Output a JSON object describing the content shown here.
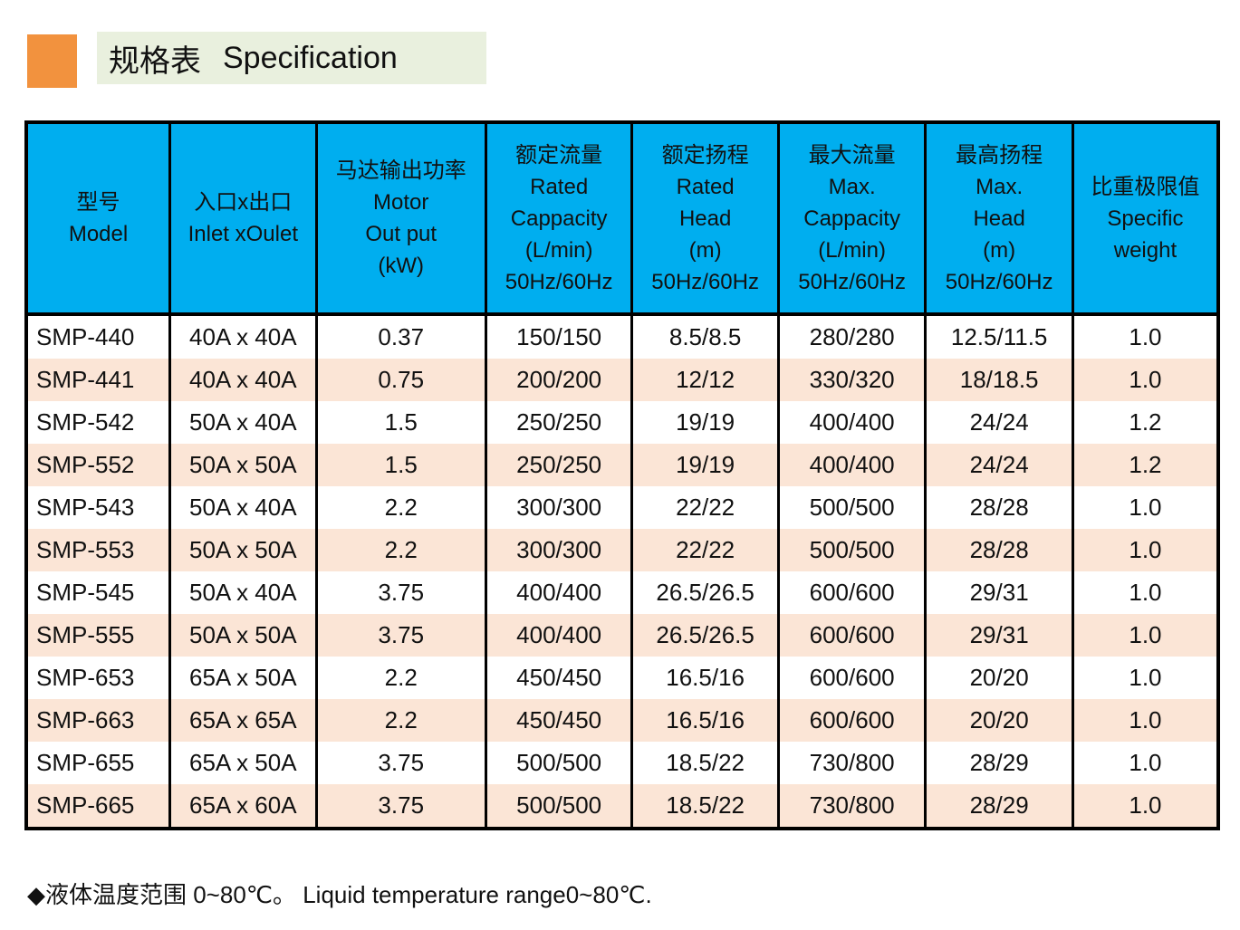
{
  "title": {
    "zh": "规格表",
    "en": "Specification"
  },
  "colors": {
    "header_blue": "#00AEEF",
    "row_alt_peach": "#FBE5D6",
    "accent_orange": "#F2923E",
    "title_bg_green": "#E9F0DE",
    "border_black": "#000000"
  },
  "table": {
    "columns": [
      {
        "id": "model",
        "lines": [
          "型号",
          "Model"
        ]
      },
      {
        "id": "inlet-outlet",
        "lines": [
          "入口x出口",
          "Inlet xOulet"
        ]
      },
      {
        "id": "motor-output",
        "lines": [
          "马达输出功率",
          "Motor",
          "Out put",
          "(kW)"
        ]
      },
      {
        "id": "rated-capacity",
        "lines": [
          "额定流量",
          "Rated",
          "Cappacity",
          "(L/min)",
          "50Hz/60Hz"
        ]
      },
      {
        "id": "rated-head",
        "lines": [
          "额定扬程",
          "Rated",
          "Head",
          "(m)",
          "50Hz/60Hz"
        ]
      },
      {
        "id": "max-capacity",
        "lines": [
          "最大流量",
          "Max.",
          "Cappacity",
          "(L/min)",
          "50Hz/60Hz"
        ]
      },
      {
        "id": "max-head",
        "lines": [
          "最高扬程",
          "Max.",
          "Head",
          "(m)",
          "50Hz/60Hz"
        ]
      },
      {
        "id": "specific-weight",
        "lines": [
          "比重极限值",
          "Specific",
          "weight"
        ]
      }
    ],
    "rows": [
      [
        "SMP-440",
        "40A x 40A",
        "0.37",
        "150/150",
        "8.5/8.5",
        "280/280",
        "12.5/11.5",
        "1.0"
      ],
      [
        "SMP-441",
        "40A x 40A",
        "0.75",
        "200/200",
        "12/12",
        "330/320",
        "18/18.5",
        "1.0"
      ],
      [
        "SMP-542",
        "50A x 40A",
        "1.5",
        "250/250",
        "19/19",
        "400/400",
        "24/24",
        "1.2"
      ],
      [
        "SMP-552",
        "50A x 50A",
        "1.5",
        "250/250",
        "19/19",
        "400/400",
        "24/24",
        "1.2"
      ],
      [
        "SMP-543",
        "50A x 40A",
        "2.2",
        "300/300",
        "22/22",
        "500/500",
        "28/28",
        "1.0"
      ],
      [
        "SMP-553",
        "50A x 50A",
        "2.2",
        "300/300",
        "22/22",
        "500/500",
        "28/28",
        "1.0"
      ],
      [
        "SMP-545",
        "50A x 40A",
        "3.75",
        "400/400",
        "26.5/26.5",
        "600/600",
        "29/31",
        "1.0"
      ],
      [
        "SMP-555",
        "50A x 50A",
        "3.75",
        "400/400",
        "26.5/26.5",
        "600/600",
        "29/31",
        "1.0"
      ],
      [
        "SMP-653",
        "65A x 50A",
        "2.2",
        "450/450",
        "16.5/16",
        "600/600",
        "20/20",
        "1.0"
      ],
      [
        "SMP-663",
        "65A x 65A",
        "2.2",
        "450/450",
        "16.5/16",
        "600/600",
        "20/20",
        "1.0"
      ],
      [
        "SMP-655",
        "65A x 50A",
        "3.75",
        "500/500",
        "18.5/22",
        "730/800",
        "28/29",
        "1.0"
      ],
      [
        "SMP-665",
        "65A x 60A",
        "3.75",
        "500/500",
        "18.5/22",
        "730/800",
        "28/29",
        "1.0"
      ]
    ],
    "column_widths_pct": [
      12.05,
      12.27,
      14.24,
      12.27,
      12.27,
      12.35,
      12.35,
      12.2
    ]
  },
  "footnote": "◆液体温度范围 0~80℃。 Liquid temperature range0~80℃."
}
